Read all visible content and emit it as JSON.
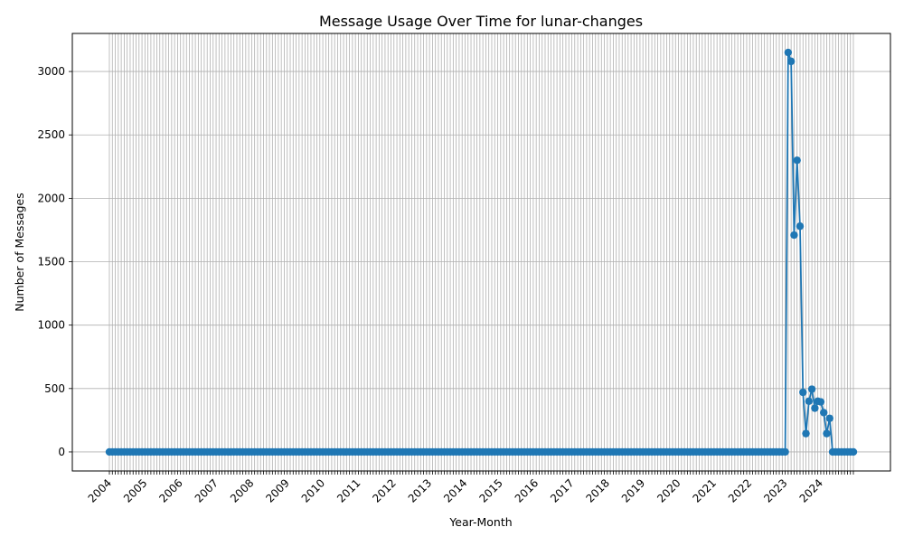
{
  "chart_data": {
    "type": "line",
    "title": "Message Usage Over Time for lunar-changes",
    "xlabel": "Year-Month",
    "ylabel": "Number of Messages",
    "ylim": [
      -150,
      3300
    ],
    "y_ticks": [
      0,
      500,
      1000,
      1500,
      2000,
      2500,
      3000
    ],
    "x_year_labels": [
      "2004",
      "2005",
      "2006",
      "2007",
      "2008",
      "2009",
      "2010",
      "2011",
      "2012",
      "2013",
      "2014",
      "2015",
      "2016",
      "2017",
      "2018",
      "2019",
      "2020",
      "2021",
      "2022",
      "2023",
      "2024"
    ],
    "grid": true,
    "marker": "circle",
    "color": "#1f77b4",
    "series": [
      {
        "name": "",
        "monthly": {
          "start": "2004-01",
          "end": "2024-12",
          "default": 0,
          "values": {
            "2023-02": 3150,
            "2023-03": 3080,
            "2023-04": 1710,
            "2023-05": 2300,
            "2023-06": 1780,
            "2023-07": 470,
            "2023-08": 145,
            "2023-09": 400,
            "2023-10": 495,
            "2023-11": 345,
            "2023-12": 400,
            "2024-01": 395,
            "2024-02": 310,
            "2024-03": 145,
            "2024-04": 265
          }
        }
      }
    ]
  }
}
